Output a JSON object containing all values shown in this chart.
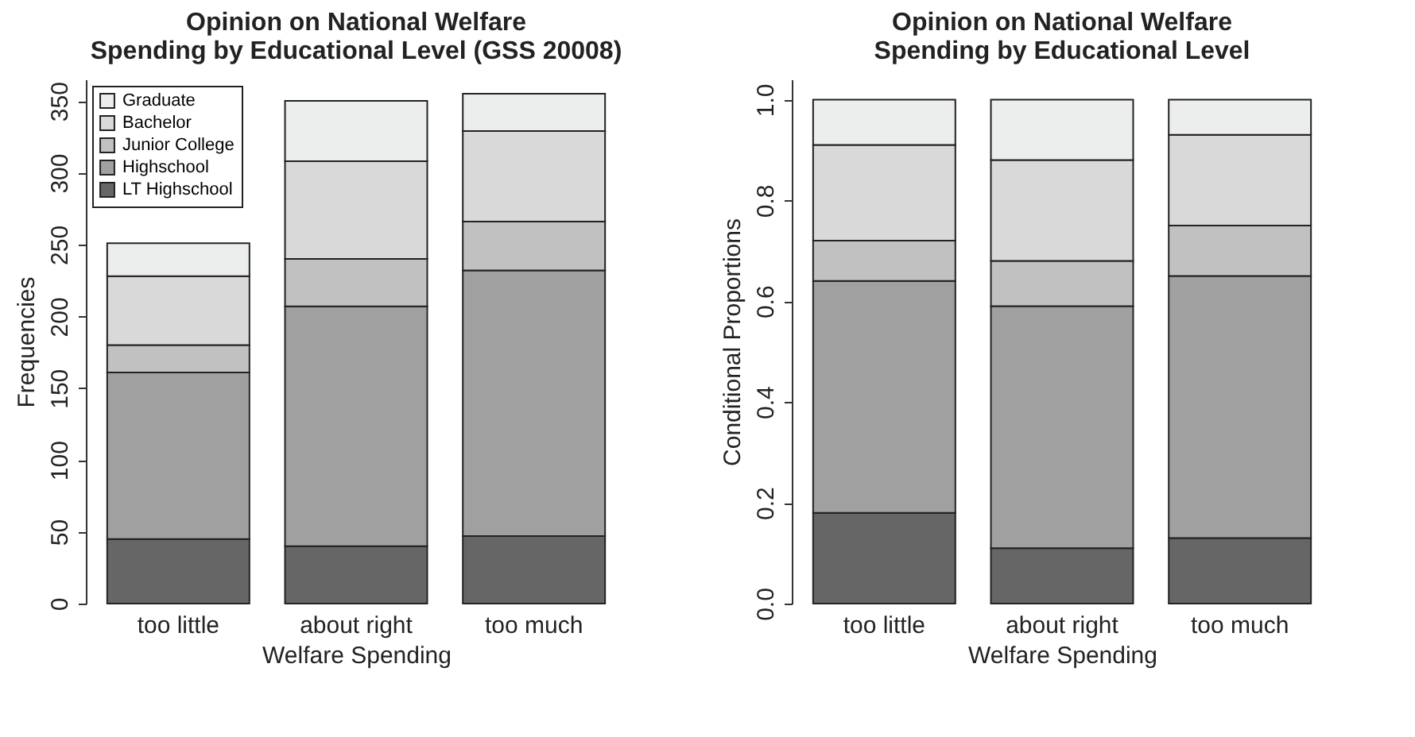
{
  "chart_data": [
    {
      "type": "bar",
      "title": "Opinion on National Welfare Spending by Educational Level (GSS 20008)",
      "xlabel": "Welfare Spending",
      "ylabel": "Frequencies",
      "categories": [
        "too little",
        "about right",
        "too much"
      ],
      "stacked": true,
      "ylim": [
        0,
        365
      ],
      "yticks": [
        0,
        50,
        100,
        150,
        200,
        250,
        300,
        350
      ],
      "grid": false,
      "legend": "top left",
      "series": [
        {
          "name": "LT Highschool",
          "color": "#666666",
          "values": [
            45,
            40,
            47
          ]
        },
        {
          "name": "Highschool",
          "color": "#a0a0a0",
          "values": [
            116,
            167,
            185
          ]
        },
        {
          "name": "Junior College",
          "color": "#c0c1c0",
          "values": [
            19,
            33,
            34
          ]
        },
        {
          "name": "Bachelor",
          "color": "#d9d9d9",
          "values": [
            48,
            68,
            63
          ]
        },
        {
          "name": "Graduate",
          "color": "#eceeed",
          "values": [
            23,
            42,
            26
          ]
        }
      ]
    },
    {
      "type": "bar",
      "title": "Opinion on National Welfare Spending by Educational Level",
      "xlabel": "Welfare Spending",
      "ylabel": "Conditional Proportions",
      "categories": [
        "too little",
        "about right",
        "too much"
      ],
      "stacked": true,
      "ylim": [
        0,
        1.04
      ],
      "yticks": [
        {
          "value": 0,
          "label": "0.0"
        },
        0.2,
        0.4,
        0.6,
        0.8,
        {
          "value": 1,
          "label": "1.0"
        }
      ],
      "grid": false,
      "legend": false,
      "series": [
        {
          "color": "#666666",
          "values": [
            0.18,
            0.11,
            0.13
          ]
        },
        {
          "color": "#a0a0a0",
          "values": [
            0.46,
            0.48,
            0.52
          ]
        },
        {
          "color": "#c0c1c0",
          "values": [
            0.08,
            0.09,
            0.1
          ]
        },
        {
          "color": "#d9d9d9",
          "values": [
            0.19,
            0.2,
            0.18
          ]
        },
        {
          "color": "#eceeed",
          "values": [
            0.09,
            0.12,
            0.07
          ]
        }
      ]
    }
  ]
}
